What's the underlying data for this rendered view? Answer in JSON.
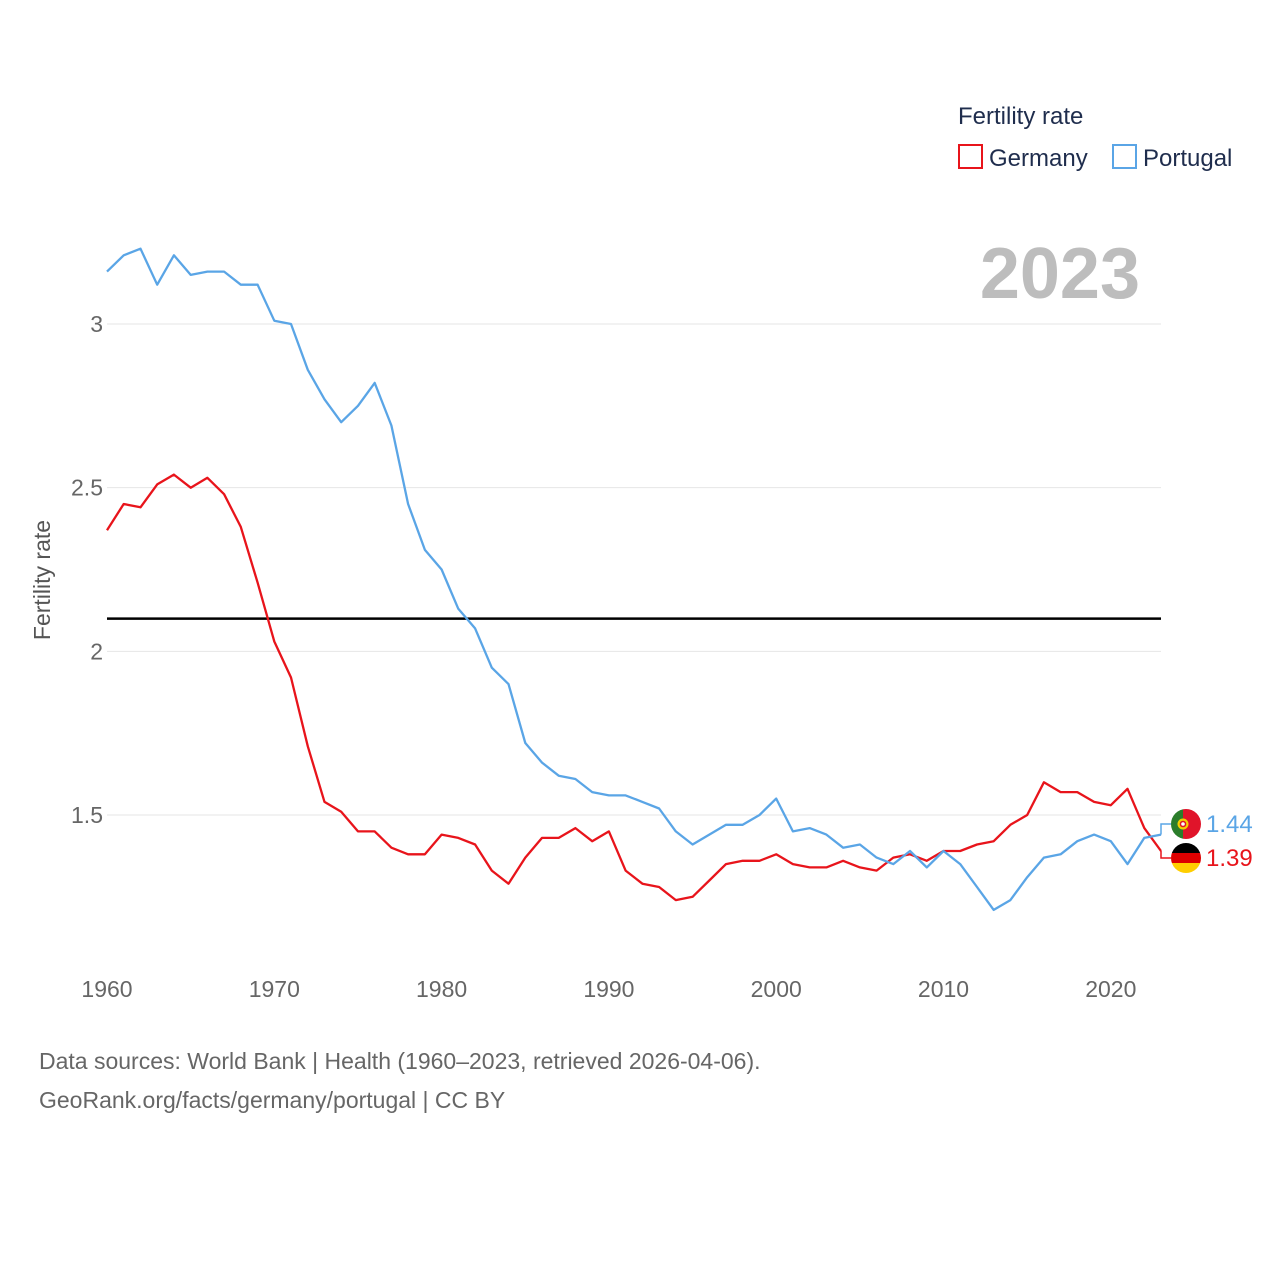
{
  "chart_data": {
    "type": "line",
    "title": "",
    "xlabel": "",
    "ylabel": "Fertility rate",
    "year_label": "2023",
    "legend": {
      "title": "Fertility rate",
      "position": "top-right"
    },
    "xlim": [
      1960,
      2023
    ],
    "ylim": [
      1.05,
      3.45
    ],
    "x_ticks": [
      1960,
      1970,
      1980,
      1990,
      2000,
      2010,
      2020
    ],
    "y_ticks": [
      1.5,
      2,
      2.5,
      3
    ],
    "y_tick_labels": [
      "1.5",
      "2",
      "2.5",
      "3"
    ],
    "reference_line": {
      "value": 2.1
    },
    "x": [
      1960,
      1961,
      1962,
      1963,
      1964,
      1965,
      1966,
      1967,
      1968,
      1969,
      1970,
      1971,
      1972,
      1973,
      1974,
      1975,
      1976,
      1977,
      1978,
      1979,
      1980,
      1981,
      1982,
      1983,
      1984,
      1985,
      1986,
      1987,
      1988,
      1989,
      1990,
      1991,
      1992,
      1993,
      1994,
      1995,
      1996,
      1997,
      1998,
      1999,
      2000,
      2001,
      2002,
      2003,
      2004,
      2005,
      2006,
      2007,
      2008,
      2009,
      2010,
      2011,
      2012,
      2013,
      2014,
      2015,
      2016,
      2017,
      2018,
      2019,
      2020,
      2021,
      2022,
      2023
    ],
    "series": [
      {
        "name": "Germany",
        "color": "#e8141b",
        "end_label": "1.39",
        "flag": "germany-flag",
        "values": [
          2.37,
          2.45,
          2.44,
          2.51,
          2.54,
          2.5,
          2.53,
          2.48,
          2.38,
          2.21,
          2.03,
          1.92,
          1.71,
          1.54,
          1.51,
          1.45,
          1.45,
          1.4,
          1.38,
          1.38,
          1.44,
          1.43,
          1.41,
          1.33,
          1.29,
          1.37,
          1.43,
          1.43,
          1.46,
          1.42,
          1.45,
          1.33,
          1.29,
          1.28,
          1.24,
          1.25,
          1.3,
          1.35,
          1.36,
          1.36,
          1.38,
          1.35,
          1.34,
          1.34,
          1.36,
          1.34,
          1.33,
          1.37,
          1.38,
          1.36,
          1.39,
          1.39,
          1.41,
          1.42,
          1.47,
          1.5,
          1.6,
          1.57,
          1.57,
          1.54,
          1.53,
          1.58,
          1.46,
          1.39
        ]
      },
      {
        "name": "Portugal",
        "color": "#5aa5e6",
        "end_label": "1.44",
        "flag": "portugal-flag",
        "values": [
          3.16,
          3.21,
          3.23,
          3.12,
          3.21,
          3.15,
          3.16,
          3.16,
          3.12,
          3.12,
          3.01,
          3.0,
          2.86,
          2.77,
          2.7,
          2.75,
          2.82,
          2.69,
          2.45,
          2.31,
          2.25,
          2.13,
          2.07,
          1.95,
          1.9,
          1.72,
          1.66,
          1.62,
          1.61,
          1.57,
          1.56,
          1.56,
          1.54,
          1.52,
          1.45,
          1.41,
          1.44,
          1.47,
          1.47,
          1.5,
          1.55,
          1.45,
          1.46,
          1.44,
          1.4,
          1.41,
          1.37,
          1.35,
          1.39,
          1.34,
          1.39,
          1.35,
          1.28,
          1.21,
          1.24,
          1.31,
          1.37,
          1.38,
          1.42,
          1.44,
          1.42,
          1.35,
          1.43,
          1.44
        ]
      }
    ]
  },
  "source": {
    "line1": "Data sources: World Bank | Health (1960–2023, retrieved 2026-04-06).",
    "line2": "GeoRank.org/facts/germany/portugal | CC BY"
  }
}
